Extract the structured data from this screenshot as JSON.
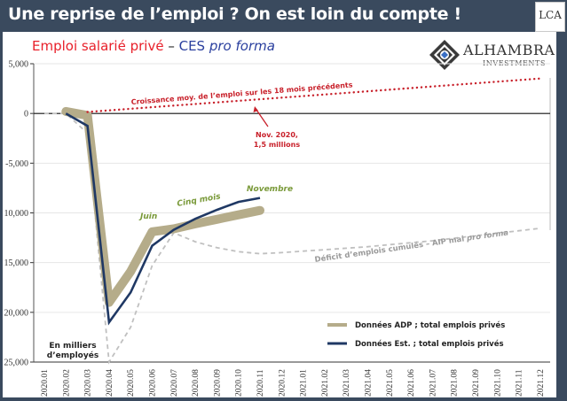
{
  "header": {
    "title": "Une reprise de l’emploi ? On est loin du compte !",
    "logo_text": "LCA"
  },
  "subtitle": {
    "part1": "Emploi salarié privé",
    "separator": " – ",
    "part2": "CES ",
    "part3": "pro forma"
  },
  "brand": {
    "name": "ALHAMBRA",
    "tagline": "INVESTMENTS"
  },
  "colors": {
    "background": "#3a4a5e",
    "adp": "#b5ac8a",
    "est": "#1f3864",
    "trend": "#c8202a",
    "deficit": "#c0c0c0",
    "annotation_green": "#7a9a3a"
  },
  "chart_data": {
    "type": "line",
    "title": "Emploi salarié privé – CES pro forma",
    "ylabel": "En milliers d’employés",
    "xlabel": "",
    "ylim": [
      -25000,
      5000
    ],
    "yticks": [
      5000,
      0,
      -5000,
      -10000,
      -15000,
      -20000,
      -25000
    ],
    "ytick_labels": [
      "5,000",
      "0",
      "-5,000",
      "10,000",
      "15,000",
      "20,000",
      "25,000"
    ],
    "grid": true,
    "x": [
      "2020.01",
      "2020.02",
      "2020.03",
      "2020.04",
      "2020.05",
      "2020.06",
      "2020.07",
      "2020.08",
      "2020.09",
      "2020.10",
      "2020.11",
      "2020.12",
      "2021.01",
      "2021.02",
      "2021.03",
      "2021.04",
      "2021.05",
      "2021.06",
      "2021.07",
      "2021.08",
      "2021.09",
      "2021.10",
      "2021.11",
      "2021.12"
    ],
    "series": [
      {
        "name": "Données ADP ; total emplois privés",
        "style": "thick",
        "values": [
          null,
          200,
          -200,
          -19000,
          -15900,
          -11900,
          -11600,
          -11100,
          -10650,
          -10200,
          -9750,
          null,
          null,
          null,
          null,
          null,
          null,
          null,
          null,
          null,
          null,
          null,
          null,
          null
        ]
      },
      {
        "name": "Données Est. ; total emplois privés",
        "style": "solid",
        "values": [
          null,
          0,
          -1250,
          -21000,
          -18000,
          -13300,
          -11700,
          -10600,
          -9700,
          -8900,
          -8500,
          null,
          null,
          null,
          null,
          null,
          null,
          null,
          null,
          null,
          null,
          null,
          null,
          null
        ]
      },
      {
        "name": "Déficit d’emplois cumulés – AIP mai pro forma",
        "style": "dashed",
        "values": [
          0,
          0,
          -2000,
          -25000,
          -21500,
          -15300,
          -12000,
          -12900,
          -13500,
          -13900,
          -14100,
          -14000,
          -13850,
          -13700,
          -13550,
          -13400,
          -13200,
          -13000,
          -12800,
          -12550,
          -12300,
          -12050,
          -11800,
          -11550
        ]
      },
      {
        "name": "Croissance moy. de l’emploi sur les 18 mois précédents",
        "style": "dotted",
        "values": [
          null,
          null,
          150,
          310,
          470,
          630,
          790,
          950,
          1110,
          1270,
          1430,
          1590,
          1750,
          1910,
          2070,
          2230,
          2390,
          2550,
          2710,
          2870,
          3030,
          3190,
          3350,
          3510
        ]
      }
    ],
    "annotations": [
      {
        "text": "Croissance moy. de l’emploi sur les 18 mois précédents",
        "color": "red"
      },
      {
        "text": "Nov. 2020,",
        "color": "red"
      },
      {
        "text": "1,5 millions",
        "color": "red"
      },
      {
        "text": "Juin",
        "color": "green"
      },
      {
        "text": "Cinq mois",
        "color": "green"
      },
      {
        "text": "Novembre",
        "color": "green"
      },
      {
        "text": "Déficit d’emplois cumulés – AIP mai ",
        "color": "gray"
      },
      {
        "text": "pro forma",
        "color": "gray"
      },
      {
        "text": "En milliers",
        "color": "black"
      },
      {
        "text": "d’employés",
        "color": "black"
      }
    ],
    "legend": {
      "position": "bottom-right",
      "entries": [
        "Données ADP ; total emplois privés",
        "Données Est. ; total emplois privés"
      ]
    }
  }
}
